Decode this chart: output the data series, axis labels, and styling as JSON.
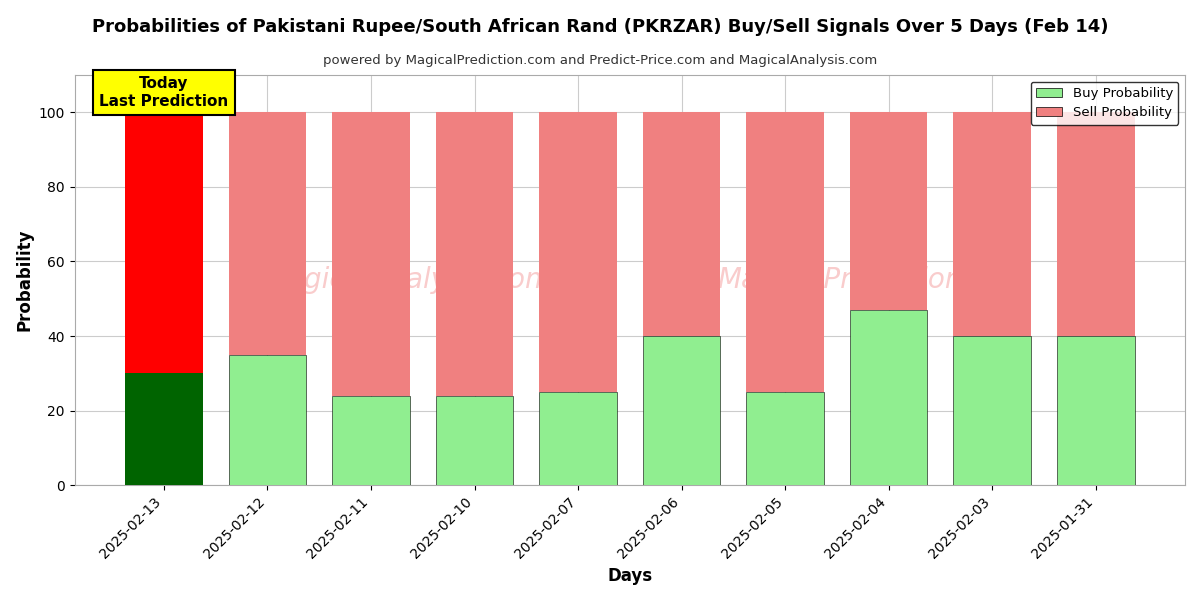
{
  "title": "Probabilities of Pakistani Rupee/South African Rand (PKRZAR) Buy/Sell Signals Over 5 Days (Feb 14)",
  "subtitle": "powered by MagicalPrediction.com and Predict-Price.com and MagicalAnalysis.com",
  "xlabel": "Days",
  "ylabel": "Probability",
  "watermark_left": "MagicalAnalysis.com",
  "watermark_right": "MagicalPrediction.com",
  "categories": [
    "2025-02-13",
    "2025-02-12",
    "2025-02-11",
    "2025-02-10",
    "2025-02-07",
    "2025-02-06",
    "2025-02-05",
    "2025-02-04",
    "2025-02-03",
    "2025-01-31"
  ],
  "buy_values": [
    30,
    35,
    24,
    24,
    25,
    40,
    25,
    47,
    40,
    40
  ],
  "sell_values": [
    70,
    65,
    76,
    76,
    75,
    60,
    75,
    53,
    60,
    60
  ],
  "buy_color_today": "#006400",
  "sell_color_today": "#ff0000",
  "buy_color_normal": "#90EE90",
  "sell_color_normal": "#f08080",
  "today_annotation": "Today\nLast Prediction",
  "today_annotation_color": "#ffff00",
  "ylim_max": 110,
  "yticks": [
    0,
    20,
    40,
    60,
    80,
    100
  ],
  "dashed_line_y": 110,
  "legend_buy_label": "Buy Probability",
  "legend_sell_label": "Sell Probability",
  "background_color": "#ffffff",
  "grid_color": "#cccccc"
}
